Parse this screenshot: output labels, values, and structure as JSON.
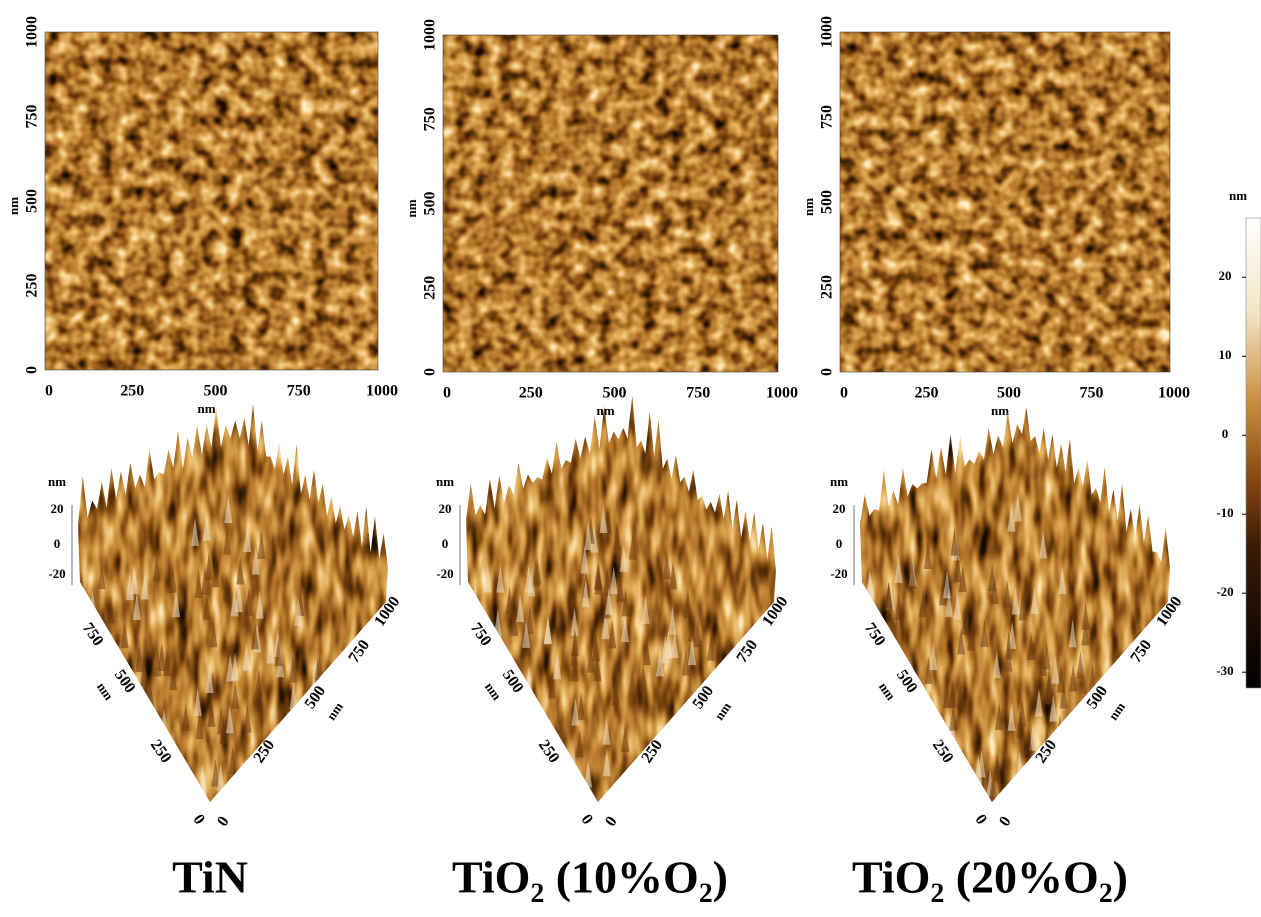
{
  "colorbar": {
    "unit": "nm",
    "ticks": [
      20,
      10,
      0,
      -10,
      -20,
      -30
    ]
  },
  "panels": [
    {
      "caption": "TiN",
      "map2d": {
        "xticks": [
          0,
          250,
          500,
          750,
          1000
        ],
        "yticks": [
          0,
          250,
          500,
          750,
          1000
        ],
        "xlabel": "nm",
        "ylabel": "nm"
      },
      "surface3d": {
        "zlabel": "nm",
        "zticks": [
          20,
          0,
          -20
        ],
        "left_ticks": [
          750,
          500,
          250,
          0
        ],
        "left_label": "nm",
        "right_ticks": [
          0,
          250,
          500,
          750,
          1000
        ],
        "right_label": "nm"
      }
    },
    {
      "caption": "TiO₂ (10%O₂)",
      "map2d": {
        "xticks": [
          0,
          250,
          500,
          750,
          1000
        ],
        "yticks": [
          0,
          250,
          500,
          750,
          1000
        ],
        "xlabel": "nm",
        "ylabel": "nm"
      },
      "surface3d": {
        "zlabel": "nm",
        "zticks": [
          20,
          0,
          -20
        ],
        "left_ticks": [
          750,
          500,
          250,
          0
        ],
        "left_label": "nm",
        "right_ticks": [
          0,
          250,
          500,
          750,
          1000
        ],
        "right_label": "nm"
      }
    },
    {
      "caption": "TiO₂ (20%O₂)",
      "map2d": {
        "xticks": [
          0,
          250,
          500,
          750,
          1000
        ],
        "yticks": [
          0,
          250,
          500,
          750,
          1000
        ],
        "xlabel": "nm",
        "ylabel": "nm"
      },
      "surface3d": {
        "zlabel": "nm",
        "zticks": [
          20,
          0,
          -20
        ],
        "left_ticks": [
          750,
          500,
          250,
          0
        ],
        "left_label": "nm",
        "right_ticks": [
          0,
          250,
          500,
          750,
          1000
        ],
        "right_label": "nm"
      }
    }
  ]
}
